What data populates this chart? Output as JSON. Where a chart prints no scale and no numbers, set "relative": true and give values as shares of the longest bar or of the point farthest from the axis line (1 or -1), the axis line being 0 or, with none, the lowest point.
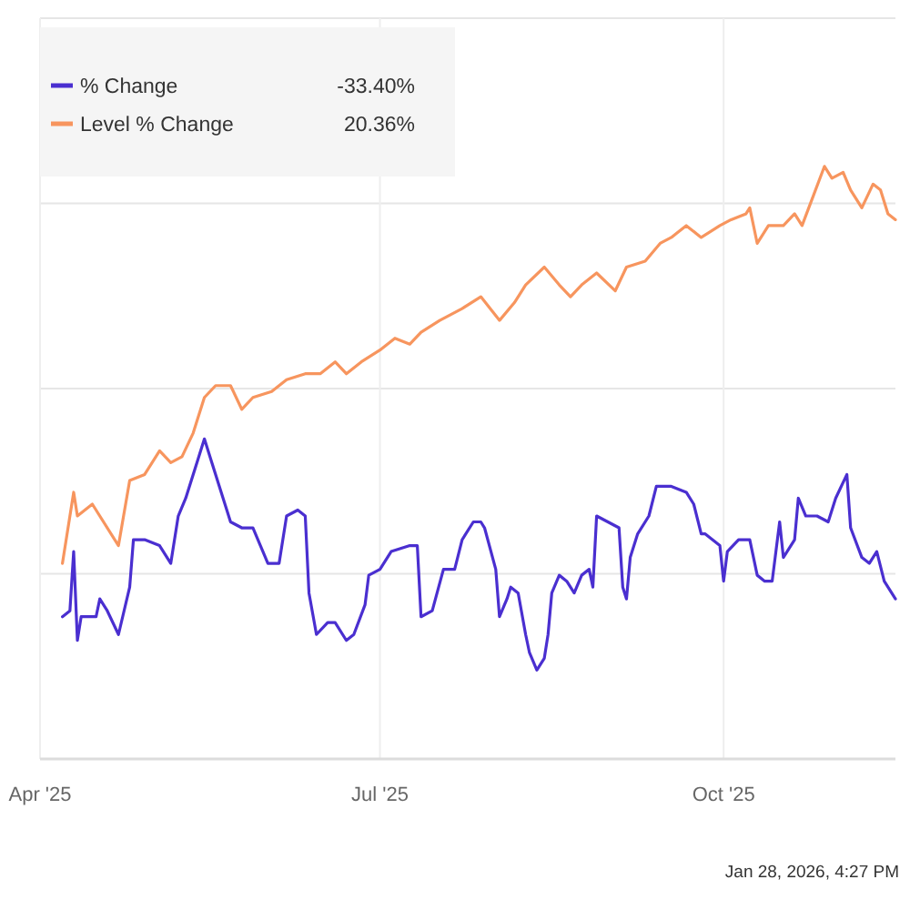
{
  "chart_data": {
    "type": "line",
    "relative": true,
    "legend": "top left",
    "grid": true,
    "xlim": [
      "2025-04-01",
      "2025-11-16"
    ],
    "xticks": [
      {
        "value": "2025-04-01",
        "label": "Apr '25"
      },
      {
        "value": "2025-07-01",
        "label": "Jul '25"
      },
      {
        "value": "2025-10-01",
        "label": "Oct '25"
      }
    ],
    "annotations": [
      "-33.40%",
      "20.36%",
      "Jan 28, 2026, 4:27 PM"
    ],
    "series": [
      {
        "name": "% Change",
        "color": "#4a2fd0",
        "x": [
          "2025-04-07",
          "2025-04-09",
          "2025-04-10",
          "2025-04-11",
          "2025-04-12",
          "2025-04-16",
          "2025-04-17",
          "2025-04-19",
          "2025-04-22",
          "2025-04-25",
          "2025-04-26",
          "2025-04-29",
          "2025-05-03",
          "2025-05-06",
          "2025-05-08",
          "2025-05-10",
          "2025-05-13",
          "2025-05-15",
          "2025-05-17",
          "2025-05-20",
          "2025-05-22",
          "2025-05-25",
          "2025-05-28",
          "2025-05-30",
          "2025-06-01",
          "2025-06-04",
          "2025-06-06",
          "2025-06-09",
          "2025-06-11",
          "2025-06-12",
          "2025-06-14",
          "2025-06-17",
          "2025-06-19",
          "2025-06-22",
          "2025-06-24",
          "2025-06-27",
          "2025-06-28",
          "2025-07-01",
          "2025-07-04",
          "2025-07-09",
          "2025-07-11",
          "2025-07-12",
          "2025-07-15",
          "2025-07-18",
          "2025-07-21",
          "2025-07-23",
          "2025-07-26",
          "2025-07-28",
          "2025-07-29",
          "2025-08-01",
          "2025-08-02",
          "2025-08-04",
          "2025-08-05",
          "2025-08-07",
          "2025-08-09",
          "2025-08-10",
          "2025-08-12",
          "2025-08-14",
          "2025-08-15",
          "2025-08-16",
          "2025-08-18",
          "2025-08-20",
          "2025-08-22",
          "2025-08-24",
          "2025-08-26",
          "2025-08-27",
          "2025-08-28",
          "2025-08-31",
          "2025-09-03",
          "2025-09-04",
          "2025-09-05",
          "2025-09-06",
          "2025-09-08",
          "2025-09-11",
          "2025-09-13",
          "2025-09-17",
          "2025-09-21",
          "2025-09-23",
          "2025-09-25",
          "2025-09-26",
          "2025-09-28",
          "2025-09-30",
          "2025-10-01",
          "2025-10-02",
          "2025-10-05",
          "2025-10-08",
          "2025-10-10",
          "2025-10-12",
          "2025-10-14",
          "2025-10-16",
          "2025-10-17",
          "2025-10-20",
          "2025-10-21",
          "2025-10-23",
          "2025-10-26",
          "2025-10-29",
          "2025-10-31",
          "2025-11-03",
          "2025-11-04",
          "2025-11-07",
          "2025-11-09",
          "2025-11-11",
          "2025-11-13",
          "2025-11-16"
        ],
        "values": [
          0.24,
          0.25,
          0.35,
          0.2,
          0.24,
          0.24,
          0.27,
          0.25,
          0.21,
          0.29,
          0.37,
          0.37,
          0.36,
          0.33,
          0.41,
          0.44,
          0.5,
          0.54,
          0.5,
          0.44,
          0.4,
          0.39,
          0.39,
          0.36,
          0.33,
          0.33,
          0.41,
          0.42,
          0.41,
          0.28,
          0.21,
          0.23,
          0.23,
          0.2,
          0.21,
          0.26,
          0.31,
          0.32,
          0.35,
          0.36,
          0.36,
          0.24,
          0.25,
          0.32,
          0.32,
          0.37,
          0.4,
          0.4,
          0.39,
          0.32,
          0.24,
          0.27,
          0.29,
          0.28,
          0.21,
          0.18,
          0.15,
          0.17,
          0.21,
          0.28,
          0.31,
          0.3,
          0.28,
          0.31,
          0.32,
          0.29,
          0.41,
          0.4,
          0.39,
          0.29,
          0.27,
          0.34,
          0.38,
          0.41,
          0.46,
          0.46,
          0.45,
          0.43,
          0.38,
          0.38,
          0.37,
          0.36,
          0.3,
          0.35,
          0.37,
          0.37,
          0.31,
          0.3,
          0.3,
          0.4,
          0.34,
          0.37,
          0.44,
          0.41,
          0.41,
          0.4,
          0.44,
          0.48,
          0.39,
          0.34,
          0.33,
          0.35,
          0.3,
          0.27
        ]
      },
      {
        "name": "Level % Change",
        "color": "#f7955e",
        "x": [
          "2025-04-07",
          "2025-04-10",
          "2025-04-11",
          "2025-04-15",
          "2025-04-22",
          "2025-04-25",
          "2025-04-29",
          "2025-05-03",
          "2025-05-06",
          "2025-05-09",
          "2025-05-12",
          "2025-05-15",
          "2025-05-18",
          "2025-05-22",
          "2025-05-25",
          "2025-05-28",
          "2025-06-02",
          "2025-06-06",
          "2025-06-11",
          "2025-06-15",
          "2025-06-19",
          "2025-06-22",
          "2025-06-26",
          "2025-07-01",
          "2025-07-05",
          "2025-07-09",
          "2025-07-12",
          "2025-07-17",
          "2025-07-20",
          "2025-07-23",
          "2025-07-28",
          "2025-08-02",
          "2025-08-06",
          "2025-08-09",
          "2025-08-14",
          "2025-08-18",
          "2025-08-21",
          "2025-08-24",
          "2025-08-28",
          "2025-09-02",
          "2025-09-05",
          "2025-09-10",
          "2025-09-14",
          "2025-09-17",
          "2025-09-21",
          "2025-09-25",
          "2025-09-30",
          "2025-10-03",
          "2025-10-07",
          "2025-10-08",
          "2025-10-10",
          "2025-10-13",
          "2025-10-17",
          "2025-10-20",
          "2025-10-22",
          "2025-10-25",
          "2025-10-28",
          "2025-10-30",
          "2025-11-02",
          "2025-11-04",
          "2025-11-07",
          "2025-11-10",
          "2025-11-12",
          "2025-11-14",
          "2025-11-16"
        ],
        "values": [
          0.33,
          0.45,
          0.41,
          0.43,
          0.36,
          0.47,
          0.48,
          0.52,
          0.5,
          0.51,
          0.55,
          0.61,
          0.63,
          0.63,
          0.59,
          0.61,
          0.62,
          0.64,
          0.65,
          0.65,
          0.67,
          0.65,
          0.67,
          0.69,
          0.71,
          0.7,
          0.72,
          0.74,
          0.75,
          0.76,
          0.78,
          0.74,
          0.77,
          0.8,
          0.83,
          0.8,
          0.78,
          0.8,
          0.82,
          0.79,
          0.83,
          0.84,
          0.87,
          0.88,
          0.9,
          0.88,
          0.9,
          0.91,
          0.92,
          0.93,
          0.87,
          0.9,
          0.9,
          0.92,
          0.9,
          0.95,
          1.0,
          0.98,
          0.99,
          0.96,
          0.93,
          0.97,
          0.96,
          0.92,
          0.91
        ]
      }
    ]
  }
}
